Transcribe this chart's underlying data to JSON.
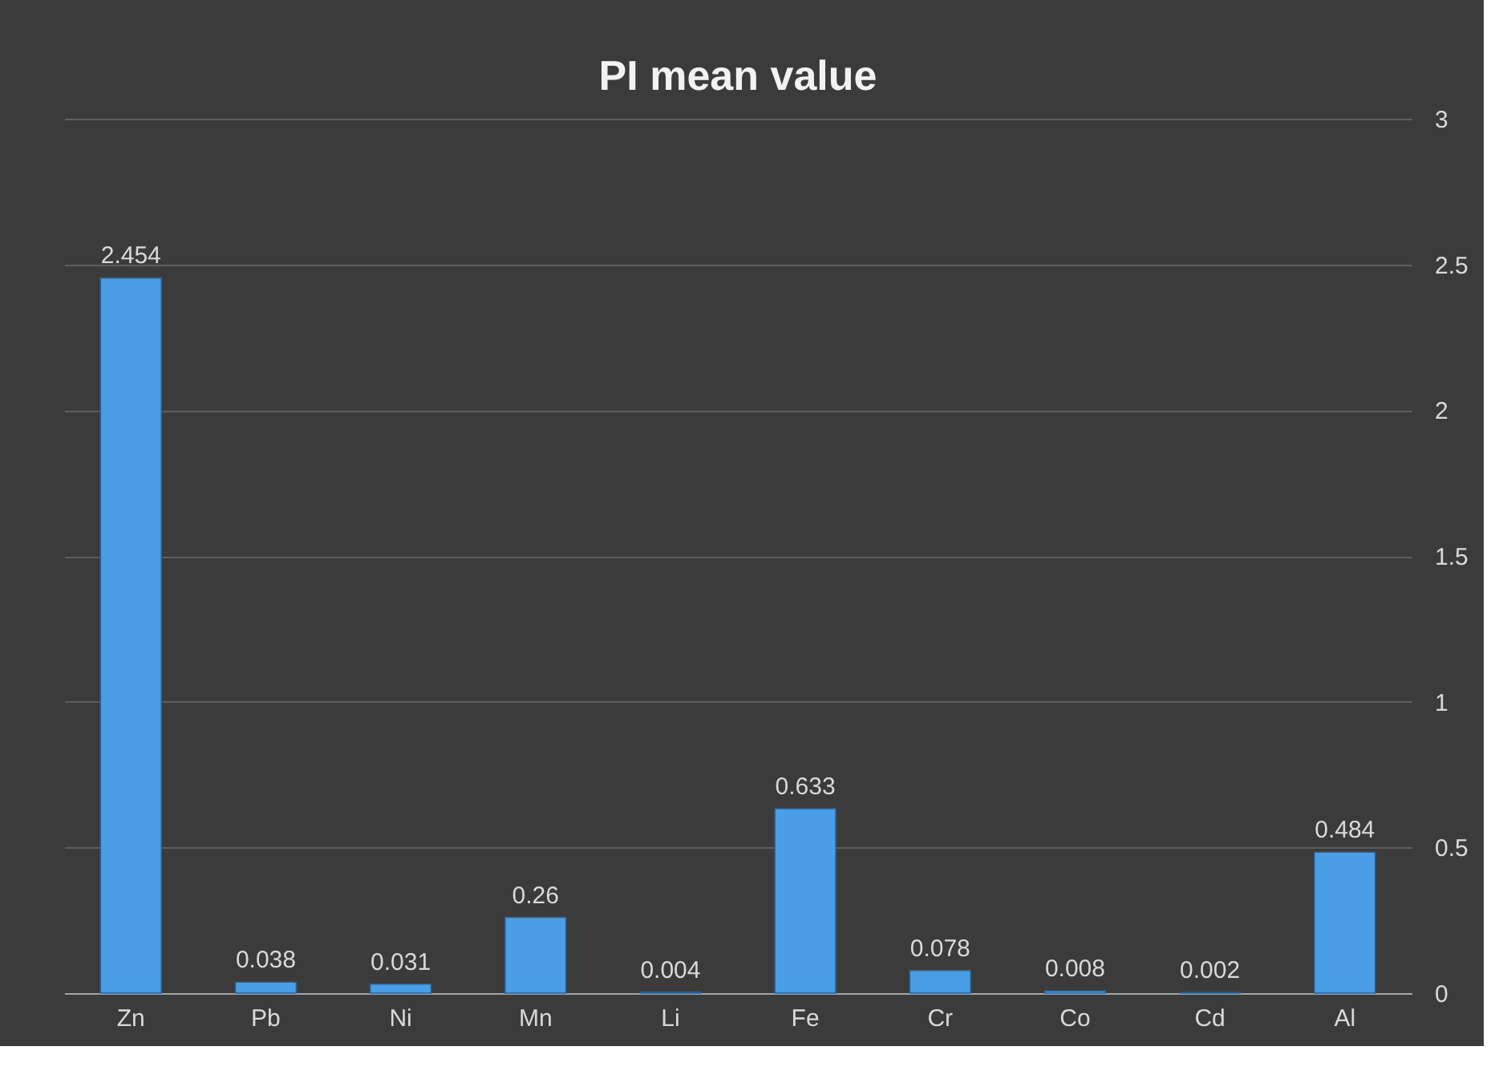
{
  "chart_data": {
    "type": "bar",
    "title": "PI mean value",
    "categories": [
      "Zn",
      "Pb",
      "Ni",
      "Mn",
      "Li",
      "Fe",
      "Cr",
      "Co",
      "Cd",
      "Al"
    ],
    "values": [
      2.454,
      0.038,
      0.031,
      0.26,
      0.004,
      0.633,
      0.078,
      0.008,
      0.002,
      0.484
    ],
    "color": "#4a9ee6",
    "ylim": [
      0,
      3
    ],
    "yticks": [
      0,
      0.5,
      1,
      1.5,
      2,
      2.5,
      3
    ],
    "grid": "y",
    "data_labels": true
  }
}
